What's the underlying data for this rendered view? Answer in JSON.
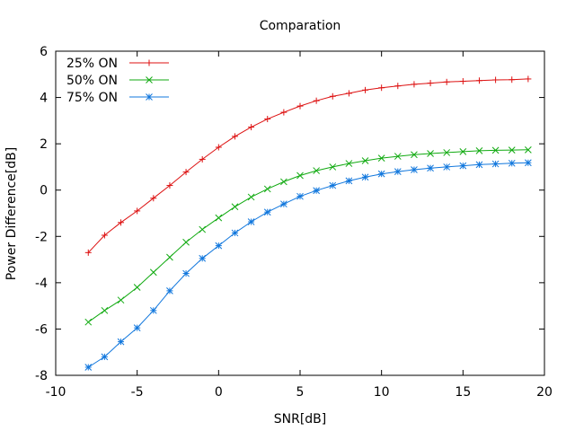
{
  "chart_data": {
    "type": "line",
    "title": "Comparation",
    "xlabel": "SNR[dB]",
    "ylabel": "Power Difference[dB]",
    "xlim": [
      -10,
      20
    ],
    "ylim": [
      -8,
      6
    ],
    "xticks": [
      -10,
      -5,
      0,
      5,
      10,
      15,
      20
    ],
    "yticks": [
      -8,
      -6,
      -4,
      -2,
      0,
      2,
      4,
      6
    ],
    "grid": false,
    "legend_position": "top-left",
    "x": [
      -8,
      -7,
      -6,
      -5,
      -4,
      -3,
      -2,
      -1,
      0,
      1,
      2,
      3,
      4,
      5,
      6,
      7,
      8,
      9,
      10,
      11,
      12,
      13,
      14,
      15,
      16,
      17,
      18,
      19
    ],
    "series": [
      {
        "name": "25% ON",
        "color": "#dd1111",
        "marker": "plus",
        "values": [
          -2.7,
          -1.95,
          -1.4,
          -0.9,
          -0.35,
          0.2,
          0.78,
          1.33,
          1.85,
          2.32,
          2.72,
          3.07,
          3.36,
          3.63,
          3.86,
          4.05,
          4.18,
          4.32,
          4.42,
          4.5,
          4.57,
          4.62,
          4.67,
          4.7,
          4.73,
          4.76,
          4.77,
          4.8
        ]
      },
      {
        "name": "50% ON",
        "color": "#11aa11",
        "marker": "cross",
        "values": [
          -5.7,
          -5.2,
          -4.75,
          -4.2,
          -3.55,
          -2.9,
          -2.25,
          -1.7,
          -1.2,
          -0.72,
          -0.3,
          0.05,
          0.36,
          0.63,
          0.84,
          1.0,
          1.15,
          1.27,
          1.38,
          1.46,
          1.53,
          1.58,
          1.62,
          1.66,
          1.7,
          1.72,
          1.73,
          1.74
        ]
      },
      {
        "name": "75% ON",
        "color": "#1177dd",
        "marker": "asterisk",
        "values": [
          -7.65,
          -7.2,
          -6.55,
          -5.95,
          -5.2,
          -4.35,
          -3.6,
          -2.95,
          -2.4,
          -1.85,
          -1.37,
          -0.95,
          -0.6,
          -0.27,
          -0.02,
          0.2,
          0.4,
          0.56,
          0.7,
          0.8,
          0.88,
          0.95,
          1.0,
          1.05,
          1.1,
          1.13,
          1.16,
          1.18
        ]
      }
    ]
  }
}
